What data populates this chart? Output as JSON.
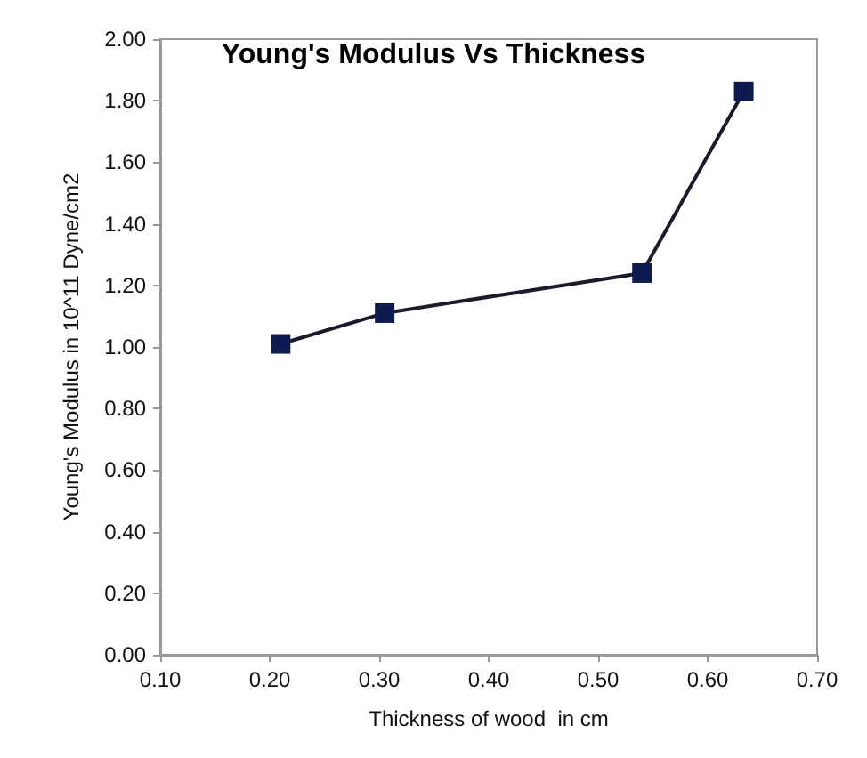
{
  "chart_data": {
    "type": "line",
    "title": "Young's Modulus Vs Thickness",
    "xlabel": "Thickness of wood  in cm",
    "ylabel": "Young's Modulus in 10^11 Dyne/cm2",
    "x": [
      0.21,
      0.305,
      0.54,
      0.633
    ],
    "series": [
      {
        "color": "#0d1b4f",
        "values": [
          1.01,
          1.11,
          1.24,
          1.83
        ]
      }
    ],
    "xlim": [
      0.1,
      0.7
    ],
    "xticks": [
      {
        "value": 0.1,
        "label": "0.10"
      },
      {
        "value": 0.2,
        "label": "0.20"
      },
      {
        "value": 0.3,
        "label": "0.30"
      },
      {
        "value": 0.4,
        "label": "0.40"
      },
      {
        "value": 0.5,
        "label": "0.50"
      },
      {
        "value": 0.6,
        "label": "0.60"
      },
      {
        "value": 0.7,
        "label": "0.70"
      }
    ],
    "ylim": [
      0,
      2
    ],
    "yticks": [
      {
        "value": 0,
        "label": "0.00"
      },
      {
        "value": 0.2,
        "label": "0.20"
      },
      {
        "value": 0.4,
        "label": "0.40"
      },
      {
        "value": 0.6,
        "label": "0.60"
      },
      {
        "value": 0.8,
        "label": "0.80"
      },
      {
        "value": 1,
        "label": "1.00"
      },
      {
        "value": 1.2,
        "label": "1.20"
      },
      {
        "value": 1.4,
        "label": "1.40"
      },
      {
        "value": 1.6,
        "label": "1.60"
      },
      {
        "value": 1.8,
        "label": "1.80"
      },
      {
        "value": 2,
        "label": "2.00"
      }
    ],
    "grid": false,
    "marker": "square",
    "line_style": "solid"
  }
}
